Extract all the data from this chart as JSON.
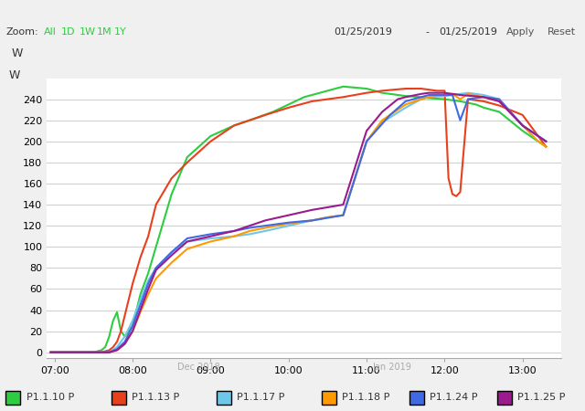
{
  "title": "W",
  "background_color": "#f0f0f0",
  "plot_bg_color": "#ffffff",
  "grid_color": "#d0d0d0",
  "ylabel": "W",
  "xlim": [
    6.9,
    13.5
  ],
  "ylim": [
    -5,
    260
  ],
  "yticks": [
    0,
    20,
    40,
    60,
    80,
    100,
    120,
    140,
    160,
    180,
    200,
    220,
    240
  ],
  "xticks": [
    7.0,
    8.0,
    9.0,
    10.0,
    11.0,
    12.0,
    13.0
  ],
  "xtick_labels": [
    "07:00",
    "08:00",
    "09:00",
    "10:00",
    "11:00",
    "12:00",
    "13:00"
  ],
  "legend": [
    "P1.1.10 P",
    "P1.1.13 P",
    "P1.1.17 P",
    "P1.1.18 P",
    "P1.1.24 P",
    "P1.1.25 P"
  ],
  "colors": [
    "#2ecc40",
    "#e8401c",
    "#6ec6e8",
    "#ff9900",
    "#4169e1",
    "#9b1b8e"
  ],
  "header_text": "Zoom:  All  1D  1W  1M  1Y",
  "date_text": "01/25/2019  -  01/25/2019",
  "series": {
    "P1.1.10": {
      "color": "#2ecc40",
      "x": [
        6.95,
        7.0,
        7.1,
        7.3,
        7.5,
        7.6,
        7.65,
        7.7,
        7.75,
        7.8,
        7.85,
        7.9,
        8.0,
        8.1,
        8.2,
        8.3,
        8.5,
        8.7,
        9.0,
        9.3,
        9.5,
        9.8,
        10.0,
        10.2,
        10.5,
        10.7,
        11.0,
        11.1,
        11.2,
        11.3,
        11.5,
        11.7,
        11.8,
        12.0,
        12.2,
        12.4,
        12.5,
        12.7,
        13.0,
        13.2,
        13.3
      ],
      "y": [
        0,
        0,
        0,
        0,
        0,
        2,
        5,
        15,
        30,
        38,
        20,
        15,
        25,
        55,
        75,
        100,
        150,
        185,
        205,
        215,
        220,
        228,
        235,
        242,
        248,
        252,
        250,
        248,
        246,
        245,
        243,
        242,
        241,
        240,
        238,
        235,
        232,
        228,
        210,
        200,
        195
      ]
    },
    "P1.1.13": {
      "color": "#e8401c",
      "x": [
        6.95,
        7.0,
        7.3,
        7.5,
        7.6,
        7.7,
        7.75,
        7.8,
        7.85,
        7.9,
        7.95,
        8.0,
        8.1,
        8.2,
        8.3,
        8.5,
        8.7,
        9.0,
        9.3,
        9.7,
        10.0,
        10.3,
        10.7,
        11.0,
        11.2,
        11.5,
        11.7,
        11.8,
        11.9,
        12.0,
        12.05,
        12.1,
        12.15,
        12.2,
        12.3,
        12.5,
        12.7,
        13.0,
        13.2,
        13.3
      ],
      "y": [
        0,
        0,
        0,
        0,
        0,
        2,
        5,
        10,
        20,
        35,
        50,
        65,
        90,
        110,
        140,
        165,
        180,
        200,
        215,
        225,
        232,
        238,
        242,
        246,
        248,
        250,
        250,
        249,
        248,
        248,
        165,
        150,
        148,
        152,
        240,
        238,
        234,
        225,
        205,
        195
      ]
    },
    "P1.1.17": {
      "color": "#6ec6e8",
      "x": [
        6.95,
        7.0,
        7.3,
        7.5,
        7.7,
        7.8,
        7.9,
        8.0,
        8.1,
        8.2,
        8.3,
        8.5,
        8.7,
        9.0,
        9.3,
        9.5,
        9.7,
        10.0,
        10.3,
        10.5,
        10.7,
        11.0,
        11.2,
        11.5,
        11.7,
        11.8,
        12.0,
        12.1,
        12.2,
        12.3,
        12.5,
        12.7,
        13.0,
        13.2,
        13.3
      ],
      "y": [
        0,
        0,
        0,
        0,
        0,
        5,
        15,
        30,
        50,
        68,
        80,
        95,
        105,
        108,
        110,
        112,
        115,
        120,
        125,
        128,
        130,
        200,
        218,
        232,
        240,
        242,
        243,
        244,
        245,
        246,
        244,
        240,
        215,
        205,
        200
      ]
    },
    "P1.1.18": {
      "color": "#ff9900",
      "x": [
        6.95,
        7.0,
        7.3,
        7.5,
        7.7,
        7.8,
        7.9,
        8.0,
        8.1,
        8.2,
        8.3,
        8.5,
        8.7,
        9.0,
        9.3,
        9.5,
        9.7,
        10.0,
        10.3,
        10.5,
        10.7,
        11.0,
        11.2,
        11.5,
        11.7,
        11.8,
        11.9,
        12.0,
        12.1,
        12.2,
        12.3,
        12.5,
        12.7,
        13.0,
        13.2,
        13.3
      ],
      "y": [
        0,
        0,
        0,
        0,
        0,
        2,
        8,
        20,
        38,
        55,
        70,
        85,
        98,
        105,
        110,
        115,
        118,
        122,
        125,
        128,
        130,
        200,
        220,
        235,
        240,
        242,
        243,
        243,
        245,
        240,
        245,
        242,
        238,
        215,
        200,
        195
      ]
    },
    "P1.1.24": {
      "color": "#4169e1",
      "x": [
        6.95,
        7.0,
        7.3,
        7.5,
        7.7,
        7.8,
        7.9,
        8.0,
        8.1,
        8.2,
        8.3,
        8.5,
        8.7,
        9.0,
        9.3,
        9.5,
        9.7,
        10.0,
        10.3,
        10.7,
        11.0,
        11.3,
        11.5,
        11.7,
        11.8,
        12.0,
        12.1,
        12.2,
        12.3,
        12.5,
        12.7,
        13.0,
        13.2,
        13.3
      ],
      "y": [
        0,
        0,
        0,
        0,
        0,
        3,
        10,
        25,
        45,
        65,
        80,
        95,
        108,
        112,
        115,
        118,
        120,
        123,
        125,
        130,
        200,
        225,
        238,
        242,
        244,
        244,
        244,
        220,
        240,
        242,
        240,
        215,
        205,
        200
      ]
    },
    "P1.1.25": {
      "color": "#9b1b8e",
      "x": [
        6.95,
        7.0,
        7.3,
        7.5,
        7.7,
        7.8,
        7.9,
        8.0,
        8.1,
        8.2,
        8.3,
        8.5,
        8.7,
        9.0,
        9.3,
        9.5,
        9.7,
        10.0,
        10.3,
        10.7,
        11.0,
        11.2,
        11.4,
        11.5,
        11.7,
        11.8,
        12.0,
        12.2,
        12.5,
        12.7,
        13.0,
        13.2,
        13.3
      ],
      "y": [
        0,
        0,
        0,
        0,
        0,
        2,
        8,
        20,
        40,
        60,
        78,
        92,
        105,
        110,
        115,
        120,
        125,
        130,
        135,
        140,
        210,
        228,
        240,
        242,
        245,
        246,
        246,
        244,
        242,
        238,
        215,
        205,
        200
      ]
    }
  }
}
